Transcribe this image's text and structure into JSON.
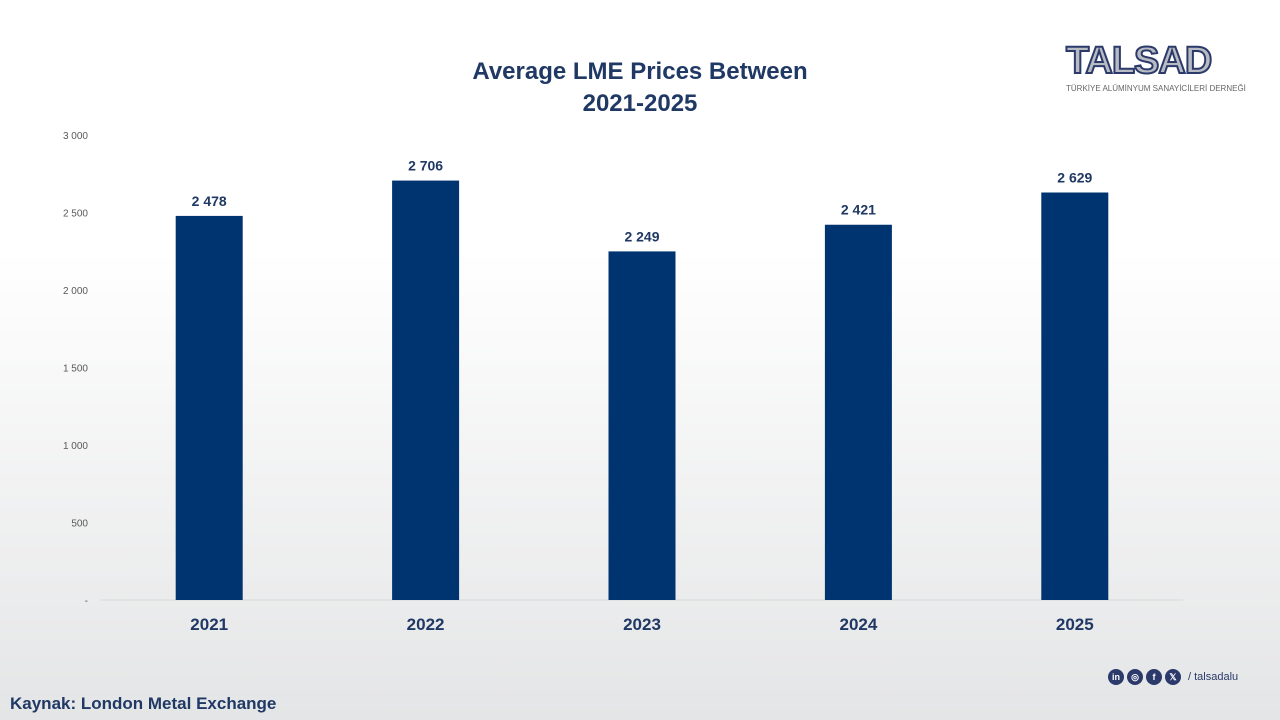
{
  "chart_data": {
    "type": "bar",
    "title": "Average LME Prices Between 2021-2025",
    "title_lines": [
      "Average LME Prices Between",
      "2021-2025"
    ],
    "categories": [
      "2021",
      "2022",
      "2023",
      "2024",
      "2025"
    ],
    "values": [
      2478,
      2706,
      2249,
      2421,
      2629
    ],
    "data_labels": [
      "2 478",
      "2 706",
      "2 249",
      "2 421",
      "2 629"
    ],
    "ylim": [
      0,
      3000
    ],
    "yticks": [
      0,
      500,
      1000,
      1500,
      2000,
      2500,
      3000
    ],
    "ytick_labels": [
      "-",
      "500",
      "1 000",
      "1 500",
      "2 000",
      "2 500",
      "3 000"
    ],
    "xlabel": "",
    "ylabel": "",
    "grid": false,
    "bar_color": "#003470"
  },
  "logo": {
    "name": "TALSAD",
    "subtitle": "TÜRKİYE ALÜMİNYUM SANAYİCİLERİ DERNEĞİ"
  },
  "source": "Kaynak: London Metal Exchange",
  "social": {
    "icons": [
      "linkedin-icon",
      "instagram-icon",
      "facebook-icon",
      "x-icon"
    ],
    "handle": "/ talsadalu"
  }
}
